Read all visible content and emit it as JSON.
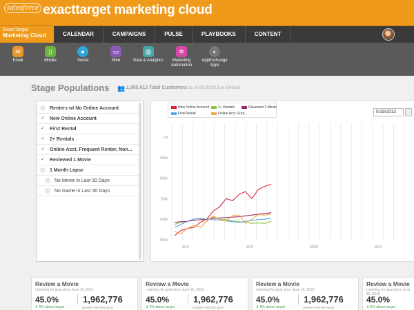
{
  "header": {
    "salesforce_badge": "salesforce",
    "brand": "exacttarget marketing cloud"
  },
  "nav": {
    "brand_line1": "ExactTarget",
    "brand_line2": "Marketing Cloud",
    "items": [
      "CALENDAR",
      "CAMPAIGNS",
      "PULSE",
      "PLAYBOOKS",
      "CONTENT"
    ]
  },
  "apps": [
    {
      "label": "Email",
      "icon": "email-icon",
      "color": "#e8962e"
    },
    {
      "label": "Mobile",
      "icon": "mobile-icon",
      "color": "#6cb33e"
    },
    {
      "label": "Social",
      "icon": "social-icon",
      "color": "#2ea6d8"
    },
    {
      "label": "Web",
      "icon": "web-icon",
      "color": "#8a5ab4"
    },
    {
      "label": "Data & Analytics",
      "icon": "analytics-icon",
      "color": "#4aa6a6"
    },
    {
      "label": "Marketing Automation",
      "icon": "automation-icon",
      "color": "#d44aa6"
    },
    {
      "label": "AppExchange Apps",
      "icon": "appexchange-icon",
      "color": "#777777"
    }
  ],
  "stage": {
    "title": "Stage Populations",
    "total_count": "1,985,613 Total Customers",
    "as_of": "as of 9/19/2013 at 8:00am"
  },
  "filters": [
    {
      "label": "Renters w/ No Online Account",
      "checked": false,
      "sub": false
    },
    {
      "label": "New Online Account",
      "checked": true,
      "sub": false
    },
    {
      "label": "First Rental",
      "checked": true,
      "sub": false
    },
    {
      "label": "2+ Rentals",
      "checked": true,
      "sub": false
    },
    {
      "label": "Online Acct, Frequent Renter, Non...",
      "checked": true,
      "sub": false
    },
    {
      "label": "Reviewed 1 Movie",
      "checked": true,
      "sub": false
    },
    {
      "label": "1 Month Lapse",
      "checked": false,
      "sub": false
    },
    {
      "label": "No Movie in Last 30 Days",
      "checked": false,
      "sub": true
    },
    {
      "label": "No Game in Last 30 Days",
      "checked": false,
      "sub": true
    }
  ],
  "date_value": "9/19/2013",
  "chart_data": {
    "type": "line",
    "y_ticks": [
      "1M",
      "900k",
      "800k",
      "700k",
      "600k",
      "500k"
    ],
    "ylim": [
      500000,
      1000000
    ],
    "x_ticks": [
      "9/19",
      "9/25",
      "10/05",
      "10/11"
    ],
    "series": [
      {
        "name": "New Online Account",
        "color": "#d9213a",
        "values": [
          520000,
          545000,
          555000,
          560000,
          585000,
          600000,
          640000,
          660000,
          700000,
          690000,
          720000,
          735000,
          700000,
          745000,
          760000,
          770000
        ]
      },
      {
        "name": "2+ Rentals",
        "color": "#8cc63e",
        "values": [
          575000,
          585000,
          590000,
          600000,
          605000,
          595000,
          610000,
          600000,
          598000,
          592000,
          588000,
          585000,
          580000,
          582000,
          580000,
          590000
        ]
      },
      {
        "name": "Reviewed 1 Movie",
        "color": "#a02a6a",
        "values": [
          585000,
          588000,
          590000,
          594000,
          598000,
          600000,
          604000,
          606000,
          608000,
          610000,
          612000,
          616000,
          620000,
          624000,
          628000,
          632000
        ]
      },
      {
        "name": "First Rental",
        "color": "#5aa6e8",
        "values": [
          560000,
          575000,
          590000,
          600000,
          604000,
          600000,
          598000,
          596000,
          592000,
          588000,
          584000,
          590000,
          594000,
          598000,
          600000,
          605000
        ]
      },
      {
        "name": "Online Acct, Freq...",
        "color": "#f2a84a",
        "values": [
          540000,
          530000,
          555000,
          570000,
          560000,
          590000,
          615000,
          600000,
          590000,
          618000,
          620000,
          580000,
          600000,
          622000,
          620000,
          625000
        ]
      }
    ]
  },
  "cards": [
    {
      "title": "Review a Movie",
      "subtitle": "Listening for goal since June 16, 2013",
      "pct": "45.0%",
      "above": "5% above target",
      "count": "1,962,776",
      "met": "people met this goal"
    },
    {
      "title": "Review a Movie",
      "subtitle": "Listening for goal since June 16, 2013",
      "pct": "45.0%",
      "above": "5% above target",
      "count": "1,962,776",
      "met": "people met this goal"
    },
    {
      "title": "Review a Movie",
      "subtitle": "Listening for goal since June 16, 2013",
      "pct": "45.0%",
      "above": "5% above target",
      "count": "1,962,776",
      "met": "people met this goal"
    },
    {
      "title": "Review a Movie",
      "subtitle": "Listening for goal since June 16, 2013",
      "pct": "45.0%",
      "above": "5% above target",
      "count": "",
      "met": ""
    }
  ]
}
